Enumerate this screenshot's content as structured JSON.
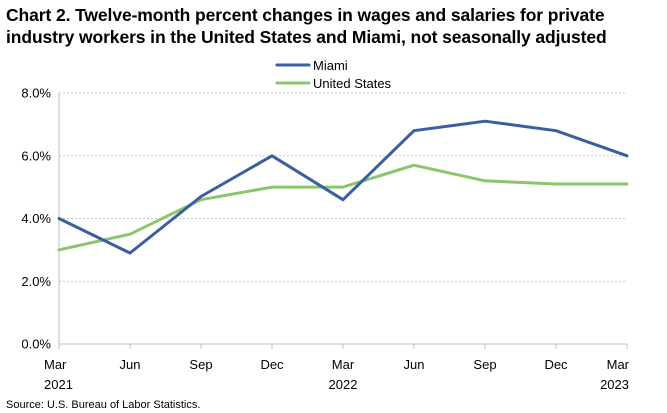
{
  "chart_data": {
    "type": "line",
    "title_lines": [
      "Chart 2. Twelve-month percent changes in wages and salaries for private",
      "industry workers in the United States and Miami, not seasonally adjusted"
    ],
    "categories": [
      "Mar",
      "Jun",
      "Sep",
      "Dec",
      "Mar",
      "Jun",
      "Sep",
      "Dec",
      "Mar"
    ],
    "year_labels": [
      "2021",
      "",
      "",
      "",
      "2022",
      "",
      "",
      "",
      "2023"
    ],
    "series": [
      {
        "name": "Miami",
        "color": "#3a5f9e",
        "values": [
          4.0,
          2.9,
          4.7,
          6.0,
          4.6,
          6.8,
          7.1,
          6.8,
          6.0
        ]
      },
      {
        "name": "United States",
        "color": "#8cc56d",
        "values": [
          3.0,
          3.5,
          4.6,
          5.0,
          5.0,
          5.7,
          5.2,
          5.1,
          5.1
        ]
      }
    ],
    "y_ticks": [
      0,
      2,
      4,
      6,
      8
    ],
    "y_tick_labels": [
      "0.0%",
      "2.0%",
      "4.0%",
      "6.0%",
      "8.0%"
    ],
    "ylim": [
      0,
      8
    ],
    "grid": true,
    "legend": "top-center",
    "xlabel": "",
    "ylabel": ""
  },
  "source": "Source: U.S. Bureau of Labor Statistics."
}
